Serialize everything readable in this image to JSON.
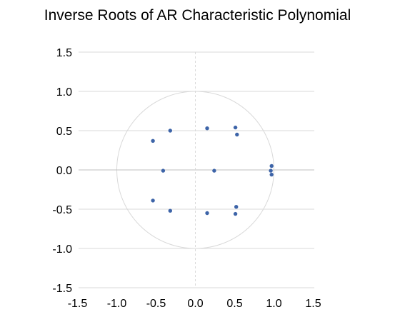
{
  "chart_data": {
    "type": "scatter",
    "title": "Inverse Roots of AR Characteristic Polynomial",
    "xlabel": "",
    "ylabel": "",
    "xlim": [
      -1.5,
      1.5
    ],
    "ylim": [
      -1.5,
      1.5
    ],
    "x_ticks": [
      "-1.5",
      "-1.0",
      "-0.5",
      "0.0",
      "0.5",
      "1.0",
      "1.5"
    ],
    "y_ticks": [
      "1.5",
      "1.0",
      "0.5",
      "0.0",
      "-0.5",
      "-1.0",
      "-1.5"
    ],
    "x_tick_values": [
      -1.5,
      -1.0,
      -0.5,
      0.0,
      0.5,
      1.0,
      1.5
    ],
    "y_tick_values": [
      1.5,
      1.0,
      0.5,
      0.0,
      -0.5,
      -1.0,
      -1.5
    ],
    "grid": "horizontal",
    "unit_circle": true,
    "legend": "none",
    "marker_color": "#3d64a8",
    "grid_color": "#d9d9d9",
    "axis_color": "#bfbfbf",
    "points": [
      {
        "x": 0.15,
        "y": 0.53
      },
      {
        "x": 0.51,
        "y": 0.54
      },
      {
        "x": 0.53,
        "y": 0.45
      },
      {
        "x": -0.32,
        "y": 0.5
      },
      {
        "x": -0.54,
        "y": 0.37
      },
      {
        "x": -0.41,
        "y": -0.01
      },
      {
        "x": 0.24,
        "y": -0.01
      },
      {
        "x": 0.97,
        "y": 0.05
      },
      {
        "x": 0.96,
        "y": -0.01
      },
      {
        "x": 0.97,
        "y": -0.06
      },
      {
        "x": -0.54,
        "y": -0.39
      },
      {
        "x": -0.32,
        "y": -0.52
      },
      {
        "x": 0.15,
        "y": -0.55
      },
      {
        "x": 0.52,
        "y": -0.47
      },
      {
        "x": 0.51,
        "y": -0.56
      }
    ]
  }
}
